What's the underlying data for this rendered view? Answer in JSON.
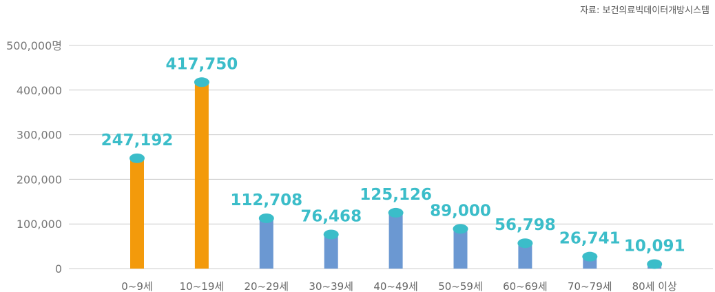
{
  "source_text": "자료: 보건의료빅데이터개방시스템",
  "chart_data": {
    "type": "bar",
    "categories": [
      "0~9세",
      "10~19세",
      "20~29세",
      "30~39세",
      "40~49세",
      "50~59세",
      "60~69세",
      "70~79세",
      "80세 이상"
    ],
    "values": [
      247192,
      417750,
      112708,
      76468,
      125126,
      89000,
      56798,
      26741,
      10091
    ],
    "data_labels": [
      "247,192",
      "417,750",
      "112,708",
      "76,468",
      "125,126",
      "89,000",
      "56,798",
      "26,741",
      "10,091"
    ],
    "y_ticks": [
      0,
      100000,
      200000,
      300000,
      400000,
      500000
    ],
    "y_tick_labels": [
      "0",
      "100,000",
      "200,000",
      "300,000",
      "400,000",
      "500,000명"
    ],
    "ylim": [
      0,
      500000
    ],
    "grid": true,
    "colors": {
      "highlight": "#f39a0b",
      "normal": "#6b98d2",
      "cap": "#3bbdc9",
      "label": "#3bbdc9",
      "grid": "#cccccc"
    },
    "highlight_categories": [
      "0~9세",
      "10~19세"
    ]
  }
}
